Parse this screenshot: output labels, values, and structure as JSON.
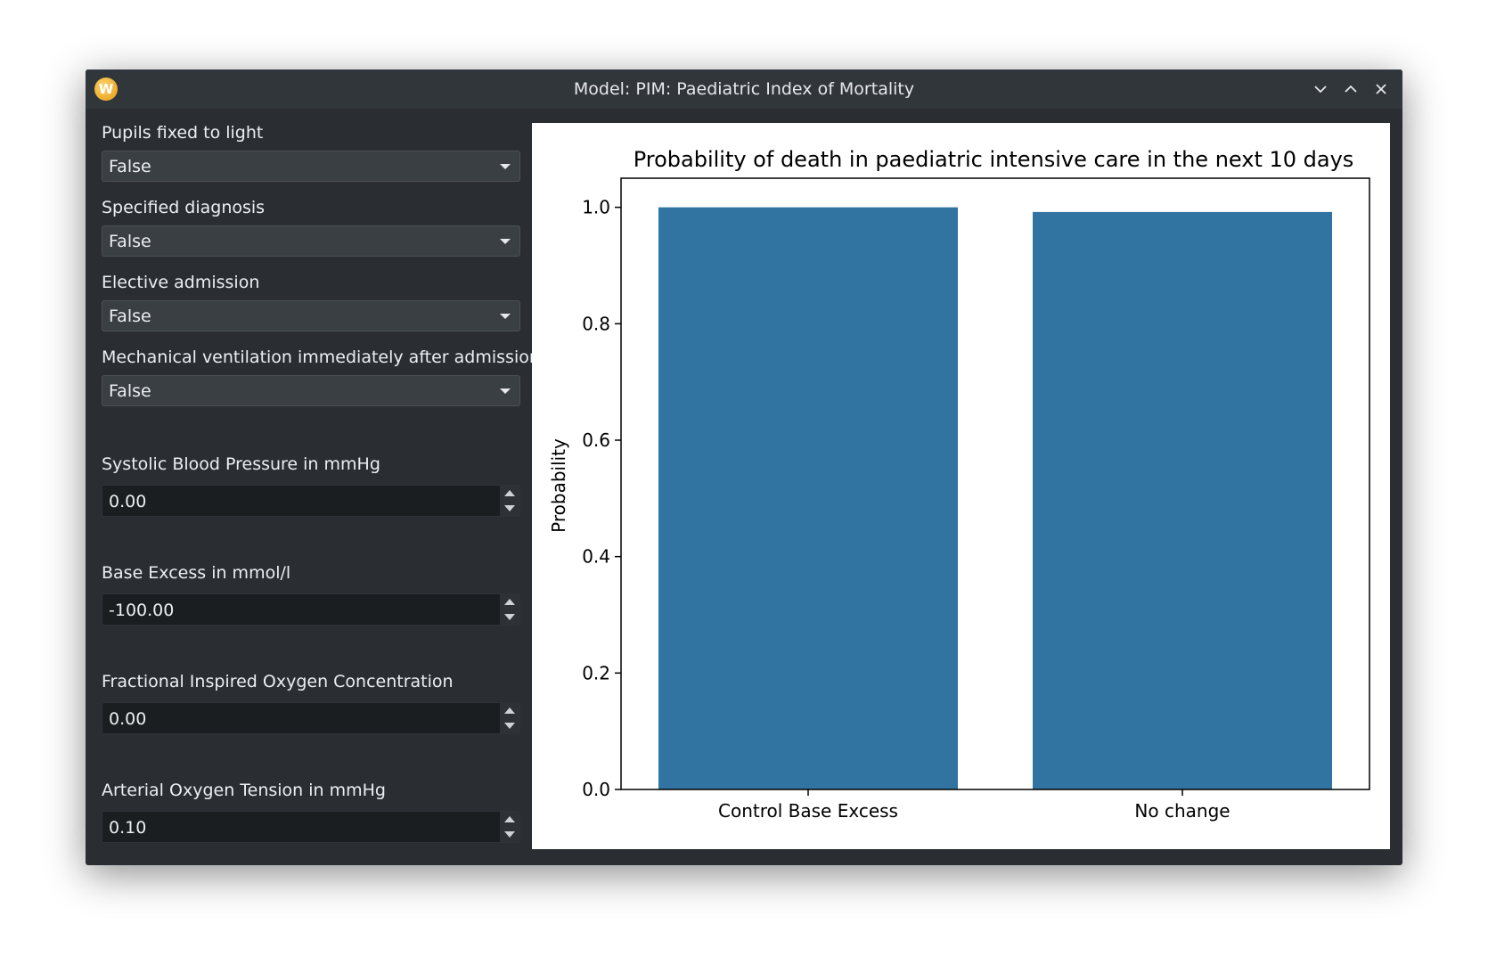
{
  "window": {
    "title": "Model: PIM: Paediatric Index of Mortality",
    "app_icon_letter": "W",
    "icons": [
      "app-icon",
      "minimize-icon",
      "maximize-icon",
      "close-icon"
    ]
  },
  "form": {
    "pupils": {
      "label": "Pupils fixed to light",
      "value": "False"
    },
    "diagnosis": {
      "label": "Specified diagnosis",
      "value": "False"
    },
    "elective": {
      "label": "Elective admission",
      "value": "False"
    },
    "ventilation": {
      "label": "Mechanical ventilation immediately after admission",
      "value": "False"
    },
    "systolic": {
      "label": "Systolic Blood Pressure in mmHg",
      "value": "0.00"
    },
    "base_excess": {
      "label": "Base Excess in mmol/l",
      "value": "-100.00"
    },
    "fio2": {
      "label": "Fractional Inspired Oxygen Concentration",
      "value": "0.00"
    },
    "pao2": {
      "label": "Arterial Oxygen Tension in mmHg",
      "value": "0.10"
    }
  },
  "chart_data": {
    "type": "bar",
    "title": "Probability of death in paediatric intensive care in the next 10 days",
    "xlabel": "",
    "ylabel": "Probability",
    "categories": [
      "Control Base Excess",
      "No change"
    ],
    "values": [
      1.0,
      0.992
    ],
    "ylim": [
      0,
      1.05
    ],
    "yticks": [
      0.0,
      0.2,
      0.4,
      0.6,
      0.8,
      1.0
    ],
    "ytick_labels": [
      "0.0",
      "0.2",
      "0.4",
      "0.6",
      "0.8",
      "1.0"
    ],
    "bar_color": "#3274a1",
    "grid": false
  }
}
